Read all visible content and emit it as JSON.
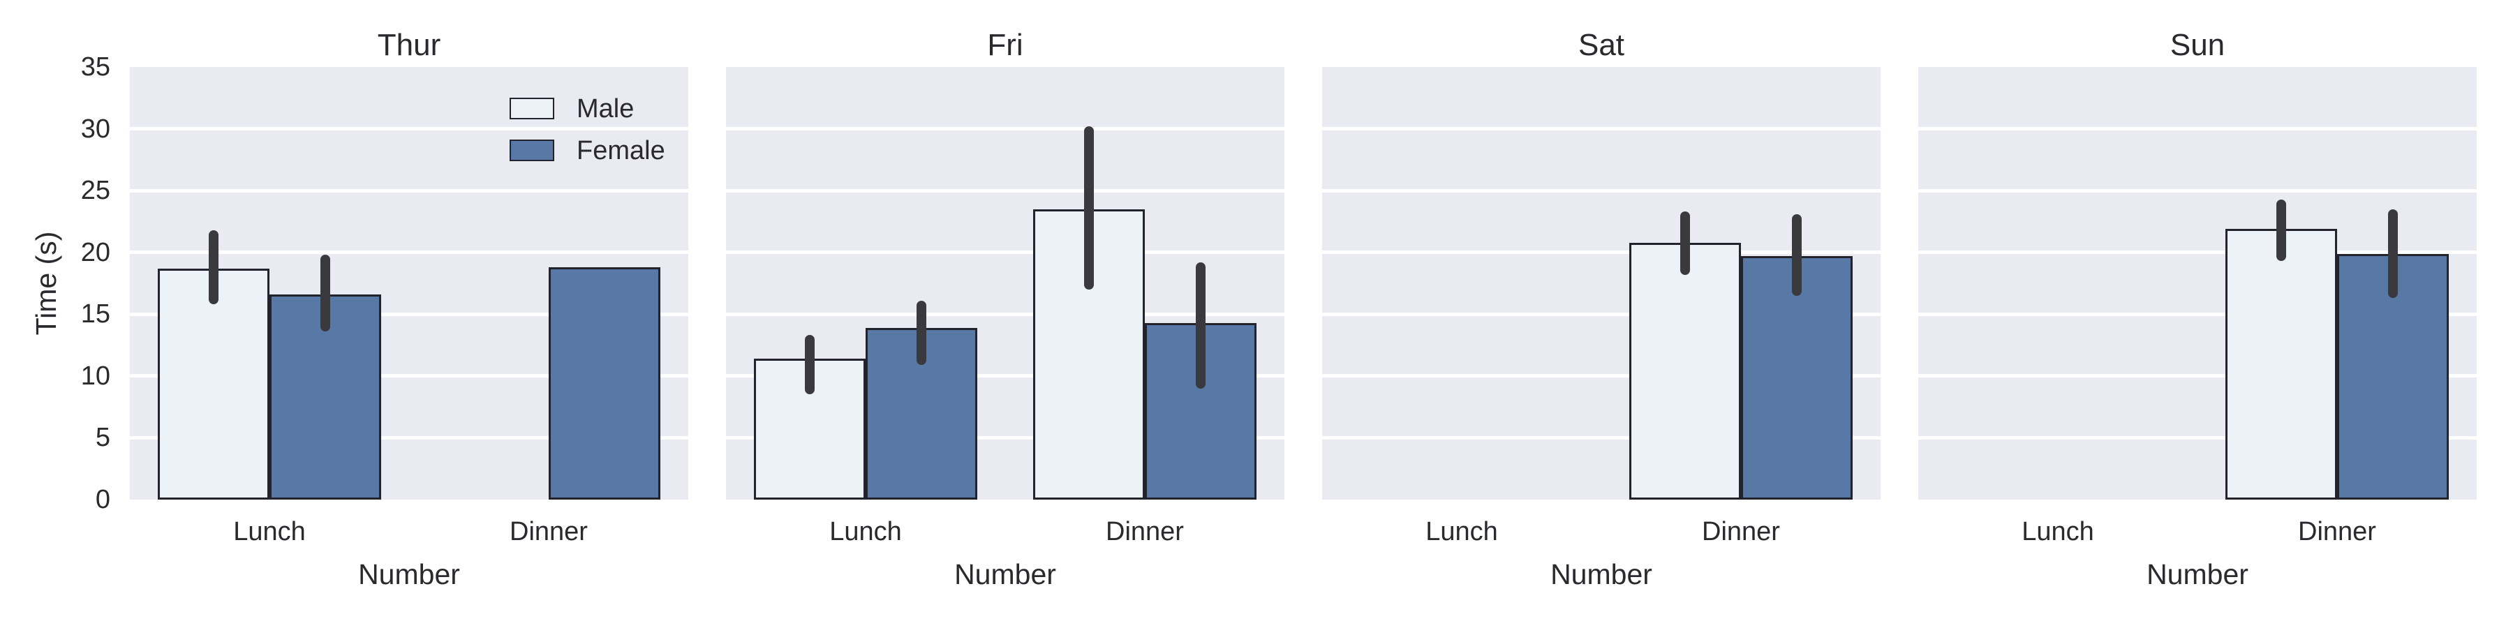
{
  "chart_data": {
    "type": "bar",
    "facet_titles": [
      "Thur",
      "Fri",
      "Sat",
      "Sun"
    ],
    "categories": [
      "Lunch",
      "Dinner"
    ],
    "series_names": [
      "Male",
      "Female"
    ],
    "xlabel": "Number",
    "ylabel": "Time (s)",
    "ylim": [
      0,
      35
    ],
    "yticks": [
      0,
      5,
      10,
      15,
      20,
      25,
      30,
      35
    ],
    "grid": true,
    "legend": {
      "position": "upper right of first facet",
      "entries": [
        "Male",
        "Female"
      ]
    },
    "facets": [
      {
        "title": "Thur",
        "bars": [
          {
            "series": "Male",
            "category": "Lunch",
            "value": 18.7,
            "ci_low": 15.8,
            "ci_high": 21.8
          },
          {
            "series": "Female",
            "category": "Lunch",
            "value": 16.6,
            "ci_low": 13.6,
            "ci_high": 19.8
          },
          {
            "series": "Female",
            "category": "Dinner",
            "value": 18.8,
            "ci_low": null,
            "ci_high": null
          }
        ]
      },
      {
        "title": "Fri",
        "bars": [
          {
            "series": "Male",
            "category": "Lunch",
            "value": 11.4,
            "ci_low": 8.5,
            "ci_high": 13.3
          },
          {
            "series": "Female",
            "category": "Lunch",
            "value": 13.9,
            "ci_low": 10.9,
            "ci_high": 16.1
          },
          {
            "series": "Male",
            "category": "Dinner",
            "value": 23.5,
            "ci_low": 17.0,
            "ci_high": 30.2
          },
          {
            "series": "Female",
            "category": "Dinner",
            "value": 14.3,
            "ci_low": 9.0,
            "ci_high": 19.2
          }
        ]
      },
      {
        "title": "Sat",
        "bars": [
          {
            "series": "Male",
            "category": "Dinner",
            "value": 20.8,
            "ci_low": 18.2,
            "ci_high": 23.3
          },
          {
            "series": "Female",
            "category": "Dinner",
            "value": 19.7,
            "ci_low": 16.5,
            "ci_high": 23.1
          }
        ]
      },
      {
        "title": "Sun",
        "bars": [
          {
            "series": "Male",
            "category": "Dinner",
            "value": 21.9,
            "ci_low": 19.3,
            "ci_high": 24.3
          },
          {
            "series": "Female",
            "category": "Dinner",
            "value": 19.9,
            "ci_low": 16.3,
            "ci_high": 23.5
          }
        ]
      }
    ]
  },
  "colors": {
    "male_bar": "#edf1f8",
    "female_bar": "#5878a6",
    "plot_background": "#e9eaf2",
    "grid_line": "#ffffff",
    "error_bar": "#3a3a3e",
    "bar_edge": "#23232d",
    "text": "#2a2a2e"
  }
}
